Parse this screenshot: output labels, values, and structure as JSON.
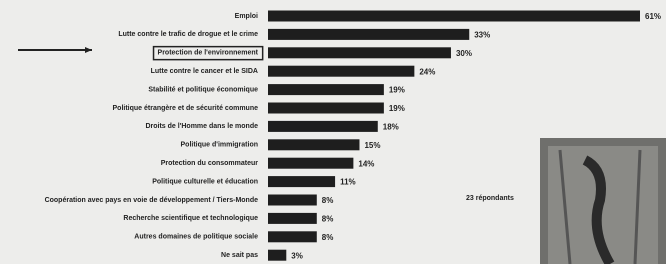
{
  "chart_data": {
    "type": "bar",
    "orientation": "horizontal",
    "categories": [
      "Emploi",
      "Lutte contre le trafic de drogue et le crime",
      "Protection de l'environnement",
      "Lutte contre le cancer et le SIDA",
      "Stabilité et politique économique",
      "Politique étrangère et de sécurité commune",
      "Droits de l'Homme dans le monde",
      "Politique d'immigration",
      "Protection du consommateur",
      "Politique culturelle et éducation",
      "Coopération avec pays en voie de développement / Tiers-Monde",
      "Recherche scientifique et technologique",
      "Autres domaines de politique sociale",
      "Ne sait pas"
    ],
    "values": [
      61,
      33,
      30,
      24,
      19,
      19,
      18,
      15,
      14,
      11,
      8,
      8,
      8,
      3
    ],
    "value_labels": [
      "61%",
      "33%",
      "30%",
      "24%",
      "19%",
      "19%",
      "18%",
      "15%",
      "14%",
      "11%",
      "8%",
      "8%",
      "8%",
      "3%"
    ],
    "color": "#1e1e1e",
    "highlighted_index": 2,
    "annotation": "23 répondants"
  }
}
